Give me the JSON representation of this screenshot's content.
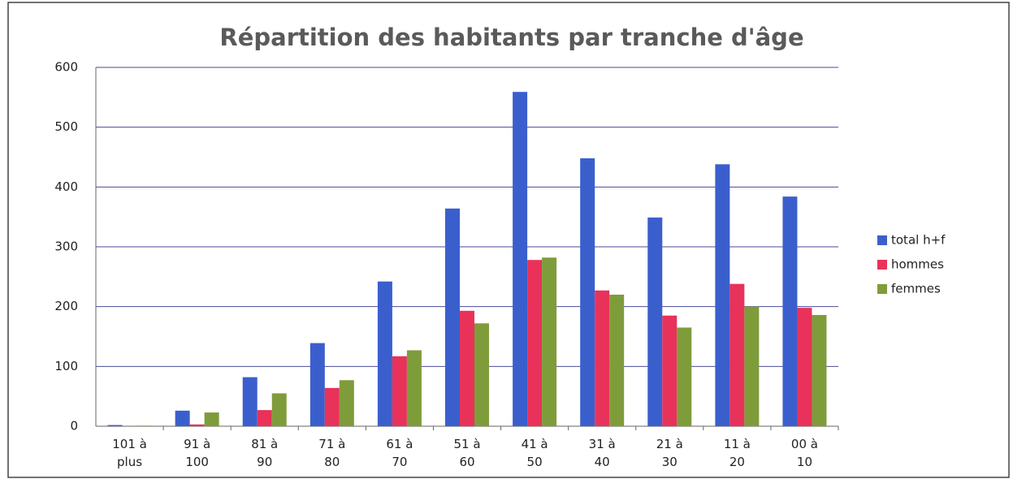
{
  "chart_data": {
    "type": "bar",
    "title": "Répartition des habitants par tranche d'âge",
    "categories": [
      "101 à plus",
      "91 à 100",
      "81 à 90",
      "71 à 80",
      "61 à 70",
      "51 à 60",
      "41 à 50",
      "31 à 40",
      "21 à 30",
      "11 à 20",
      "00 à 10"
    ],
    "series": [
      {
        "name": "total h+f",
        "color": "#3a5fcd",
        "values": [
          2,
          26,
          82,
          139,
          242,
          364,
          559,
          448,
          349,
          438,
          384
        ]
      },
      {
        "name": "hommes",
        "color": "#e8325a",
        "values": [
          0,
          3,
          27,
          64,
          117,
          193,
          278,
          227,
          185,
          238,
          198
        ]
      },
      {
        "name": "femmes",
        "color": "#7f9c3b",
        "values": [
          1,
          23,
          55,
          77,
          127,
          172,
          282,
          220,
          165,
          200,
          186
        ]
      }
    ],
    "ylim": [
      0,
      600
    ],
    "yticks": [
      0,
      100,
      200,
      300,
      400,
      500,
      600
    ],
    "grid": true,
    "legend": "right"
  }
}
